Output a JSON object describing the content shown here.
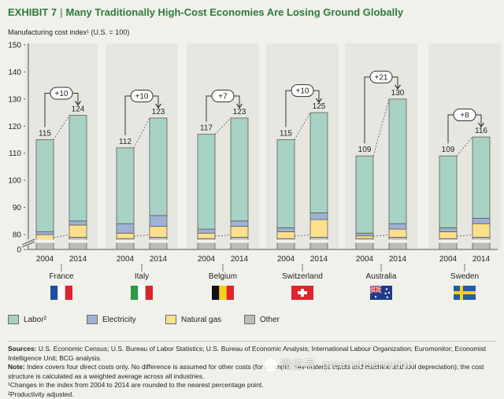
{
  "header": {
    "exhibit_label": "EXHIBIT 7",
    "title": "Many Traditionally High-Cost Economies Are Losing Ground Globally",
    "color": "#2f7a3b"
  },
  "chart_data": {
    "type": "bar",
    "stacked": true,
    "ylabel": "Manufacturing cost index¹ (U.S. = 100)",
    "ylim": [
      0,
      150
    ],
    "axis_break": true,
    "yticks": [
      "0",
      "80",
      "90",
      "100",
      "110",
      "120",
      "130",
      "140",
      "150"
    ],
    "grid": false,
    "legend_position": "bottom",
    "series_colors": {
      "Labor²": "#a8d2c3",
      "Electricity": "#9db2d4",
      "Natural gas": "#fde08d",
      "Other": "#bcbcbc"
    },
    "groups": [
      {
        "country": "France",
        "flag_icon": "france-flag-icon",
        "change": "+10",
        "bars": [
          {
            "year": "2004",
            "total": 115,
            "other": 78,
            "natural_gas": 80,
            "electricity": 81,
            "labor": 115
          },
          {
            "year": "2014",
            "total": 124,
            "other": 79,
            "natural_gas": 83.5,
            "electricity": 85,
            "labor": 124
          }
        ]
      },
      {
        "country": "Italy",
        "flag_icon": "italy-flag-icon",
        "change": "+10",
        "bars": [
          {
            "year": "2004",
            "total": 112,
            "other": 78.5,
            "natural_gas": 80.5,
            "electricity": 84,
            "labor": 112
          },
          {
            "year": "2014",
            "total": 123,
            "other": 79,
            "natural_gas": 83,
            "electricity": 87,
            "labor": 123
          }
        ]
      },
      {
        "country": "Belgium",
        "flag_icon": "belgium-flag-icon",
        "change": "+7",
        "bars": [
          {
            "year": "2004",
            "total": 117,
            "other": 78.5,
            "natural_gas": 80.5,
            "electricity": 82,
            "labor": 117
          },
          {
            "year": "2014",
            "total": 123,
            "other": 79,
            "natural_gas": 83,
            "electricity": 85,
            "labor": 123
          }
        ]
      },
      {
        "country": "Switzerland",
        "flag_icon": "switzerland-flag-icon",
        "change": "+10",
        "bars": [
          {
            "year": "2004",
            "total": 115,
            "other": 78.5,
            "natural_gas": 81,
            "electricity": 82.5,
            "labor": 115
          },
          {
            "year": "2014",
            "total": 125,
            "other": 79,
            "natural_gas": 85.5,
            "electricity": 88,
            "labor": 125
          }
        ]
      },
      {
        "country": "Australia",
        "flag_icon": "australia-flag-icon",
        "change": "+21",
        "bars": [
          {
            "year": "2004",
            "total": 109,
            "other": 78.5,
            "natural_gas": 79.5,
            "electricity": 80.5,
            "labor": 109
          },
          {
            "year": "2014",
            "total": 130,
            "other": 79,
            "natural_gas": 82,
            "electricity": 84,
            "labor": 130
          }
        ]
      },
      {
        "country": "Sweden",
        "flag_icon": "sweden-flag-icon",
        "change": "+8",
        "bars": [
          {
            "year": "2004",
            "total": 109,
            "other": 78.5,
            "natural_gas": 81,
            "electricity": 82.5,
            "labor": 109
          },
          {
            "year": "2014",
            "total": 116,
            "other": 79,
            "natural_gas": 84,
            "electricity": 86,
            "labor": 116
          }
        ]
      }
    ]
  },
  "legend": [
    {
      "label": "Labor²",
      "color": "#a8d2c3"
    },
    {
      "label": "Electricity",
      "color": "#9db2d4"
    },
    {
      "label": "Natural gas",
      "color": "#fde08d"
    },
    {
      "label": "Other",
      "color": "#bcbcbc"
    }
  ],
  "notes": {
    "sources_label": "Sources:",
    "sources": " U.S. Economic Census; U.S. Bureau of Labor Statistics; U.S. Bureau of Economic Analysis; International Labour Organization; Euromonitor; Economist Intelligence Unit; BCG analysis.",
    "note_label": "Note:",
    "note": " Index covers four direct costs only. No difference is assumed for other costs (for example, raw-material inputs and machine and tool depreciation); the cost structure is calculated as a weighted average across all industries.",
    "footnote1": "¹Changes in the index from 2004 to 2014 are rounded to the nearest percentage point.",
    "footnote2": "²Productivity adjusted."
  },
  "watermark": "微信号: greenobservation"
}
